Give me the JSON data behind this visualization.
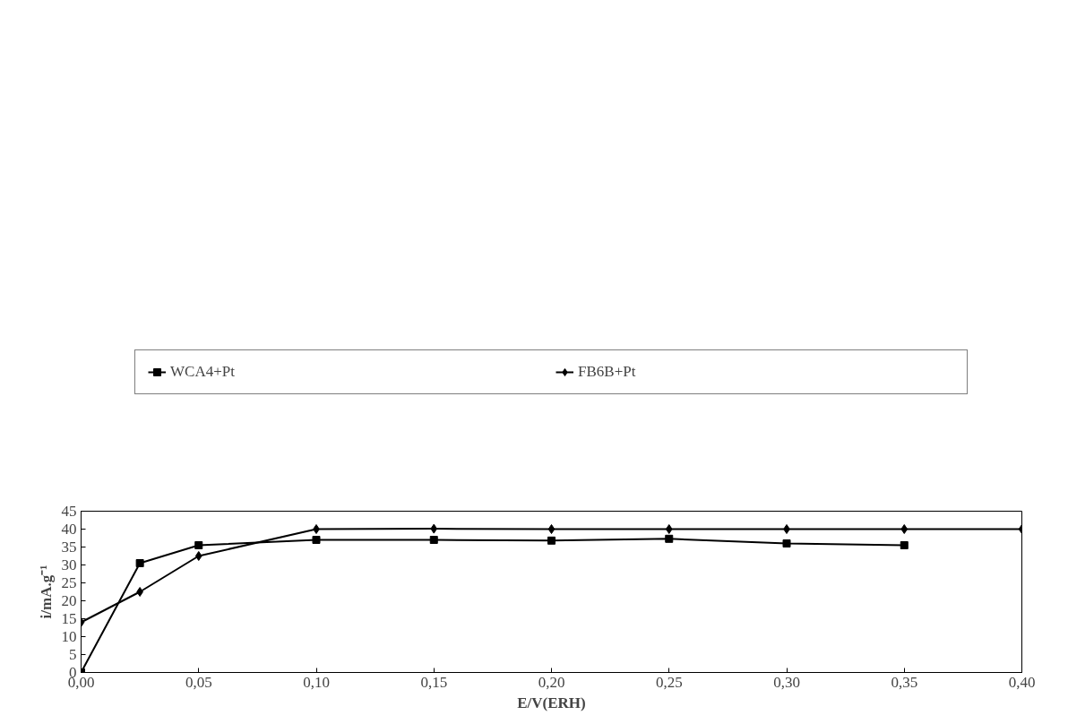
{
  "chart_data": {
    "type": "line",
    "xlabel": "E/V(ERH)",
    "ylabel": "i/mA.g⁻¹",
    "x": [
      0,
      0.025,
      0.05,
      0.1,
      0.15,
      0.2,
      0.25,
      0.3,
      0.35,
      0.4
    ],
    "series": [
      {
        "name": "WCA4+Pt",
        "color": "#000000",
        "marker": "square",
        "values": [
          0,
          30.5,
          35.5,
          37,
          37,
          36.8,
          37.3,
          36,
          35.5,
          null
        ]
      },
      {
        "name": "FB6B+Pt",
        "color": "#000000",
        "marker": "diamond",
        "values": [
          14,
          22.5,
          32.5,
          40,
          40.1,
          40,
          40,
          40,
          40,
          40
        ]
      }
    ],
    "xlim": [
      0,
      0.4
    ],
    "xticks": [
      {
        "value": 0,
        "label": "0,00"
      },
      {
        "value": 0.05,
        "label": "0,05"
      },
      {
        "value": 0.1,
        "label": "0,10"
      },
      {
        "value": 0.15,
        "label": "0,15"
      },
      {
        "value": 0.2,
        "label": "0,20"
      },
      {
        "value": 0.25,
        "label": "0,25"
      },
      {
        "value": 0.3,
        "label": "0,30"
      },
      {
        "value": 0.35,
        "label": "0,35"
      },
      {
        "value": 0.4,
        "label": "0,40"
      }
    ],
    "ylim": [
      0,
      45
    ],
    "yticks": [
      0,
      5,
      10,
      15,
      20,
      25,
      30,
      35,
      40,
      45
    ],
    "grid": false,
    "legend": "top",
    "line_style": "solid"
  }
}
